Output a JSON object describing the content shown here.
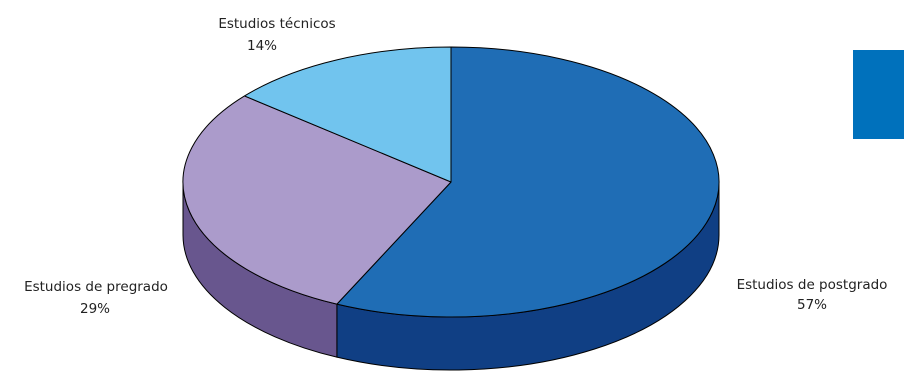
{
  "chart_data": {
    "type": "pie",
    "style": "3d",
    "title": "",
    "categories": [
      "Estudios de postgrado",
      "Estudios de pregrado",
      "Estudios técnicos"
    ],
    "values": [
      57,
      29,
      14
    ],
    "value_labels": [
      "57%",
      "29%",
      "14%"
    ],
    "colors": {
      "top": [
        "#1f6db5",
        "#ab9bcb",
        "#71c4ee"
      ],
      "side": [
        "#103f84",
        "#68568e",
        "#4a9fd0"
      ]
    },
    "legend": "none"
  },
  "decor": {
    "accent_color": "#0071bc"
  }
}
